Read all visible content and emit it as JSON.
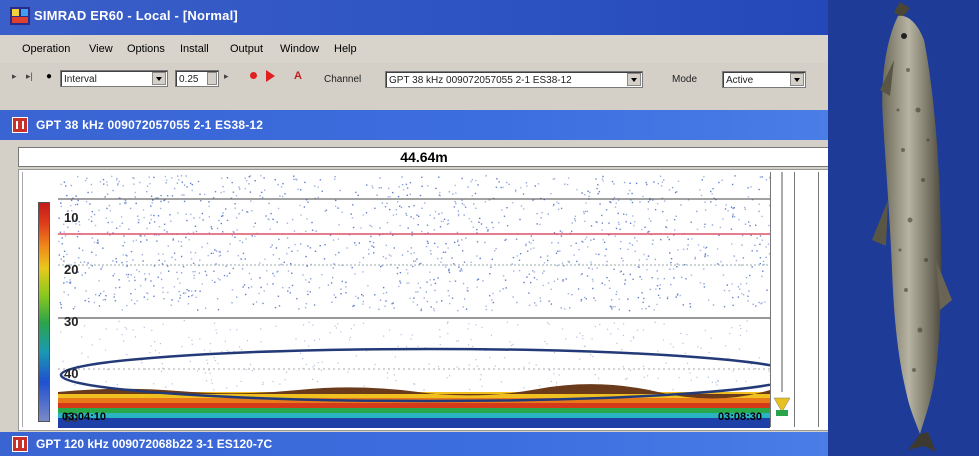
{
  "window": {
    "title": "SIMRAD ER60 - Local - [Normal]",
    "icon": "simrad-app-icon"
  },
  "menu": [
    "Operation",
    "View",
    "Options",
    "Install",
    "Output",
    "Window",
    "Help"
  ],
  "toolbar": {
    "interval_select": "Interval",
    "interval_value": "0.25",
    "a_label": "A",
    "channel_label": "Channel",
    "channel_value": "GPT 38 kHz 009072057055 2-1 ES38-12",
    "mode_label": "Mode",
    "mode_value": "Active"
  },
  "echogram": {
    "channel_title": "GPT  38 kHz 009072057055 2-1 ES38-12",
    "bottom_depth": "44.64m",
    "depth_ticks": [
      "10",
      "20",
      "30",
      "40",
      "50"
    ],
    "time_start": "03:04:10",
    "time_end": "03:08:30",
    "accent_line_color": "#e0506a"
  },
  "secondary_channel": {
    "title": "GPT  120 kHz 009072068b22 3-1 ES120-7C"
  },
  "colors": {
    "title_blue": "#2f55c4",
    "channel_blue": "#3c6ee0",
    "fish_bg": "#1d3b97"
  }
}
